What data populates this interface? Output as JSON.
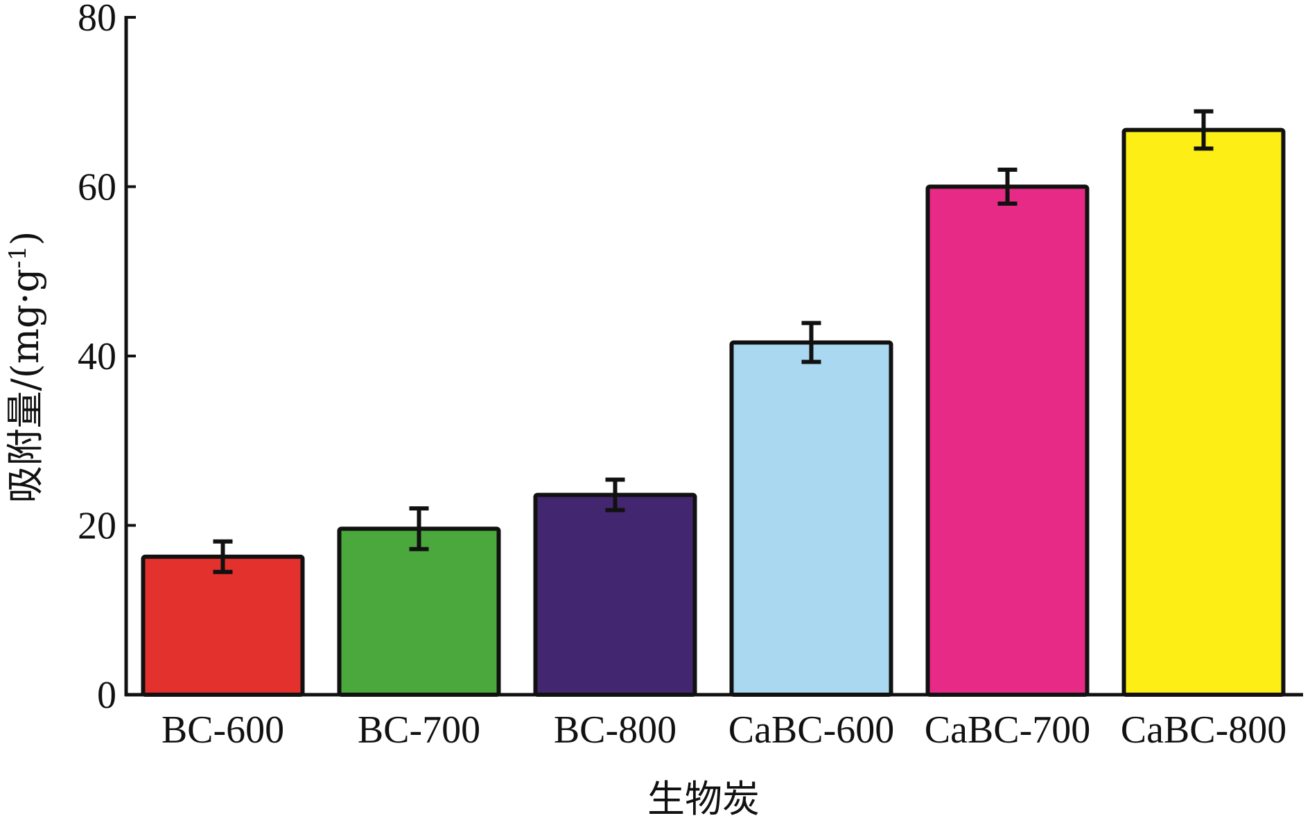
{
  "chart_data": {
    "type": "bar",
    "title": "",
    "xlabel": "生物炭",
    "ylabel": "吸附量/(mg·g",
    "ylabel_superscript": "-1",
    "ylabel_suffix": ")",
    "categories": [
      "BC-600",
      "BC-700",
      "BC-800",
      "CaBC-600",
      "CaBC-700",
      "CaBC-800"
    ],
    "values": [
      16.3,
      19.6,
      23.6,
      41.6,
      60.0,
      66.7
    ],
    "errors": [
      1.8,
      2.4,
      1.8,
      2.3,
      2.0,
      2.2
    ],
    "colors": [
      "#e3312d",
      "#4aa83c",
      "#42266f",
      "#a9d8f0",
      "#e62a86",
      "#fdee16"
    ],
    "ylim": [
      0,
      80
    ],
    "yticks": [
      0,
      20,
      40,
      60,
      80
    ],
    "grid": false,
    "legend": "none"
  }
}
